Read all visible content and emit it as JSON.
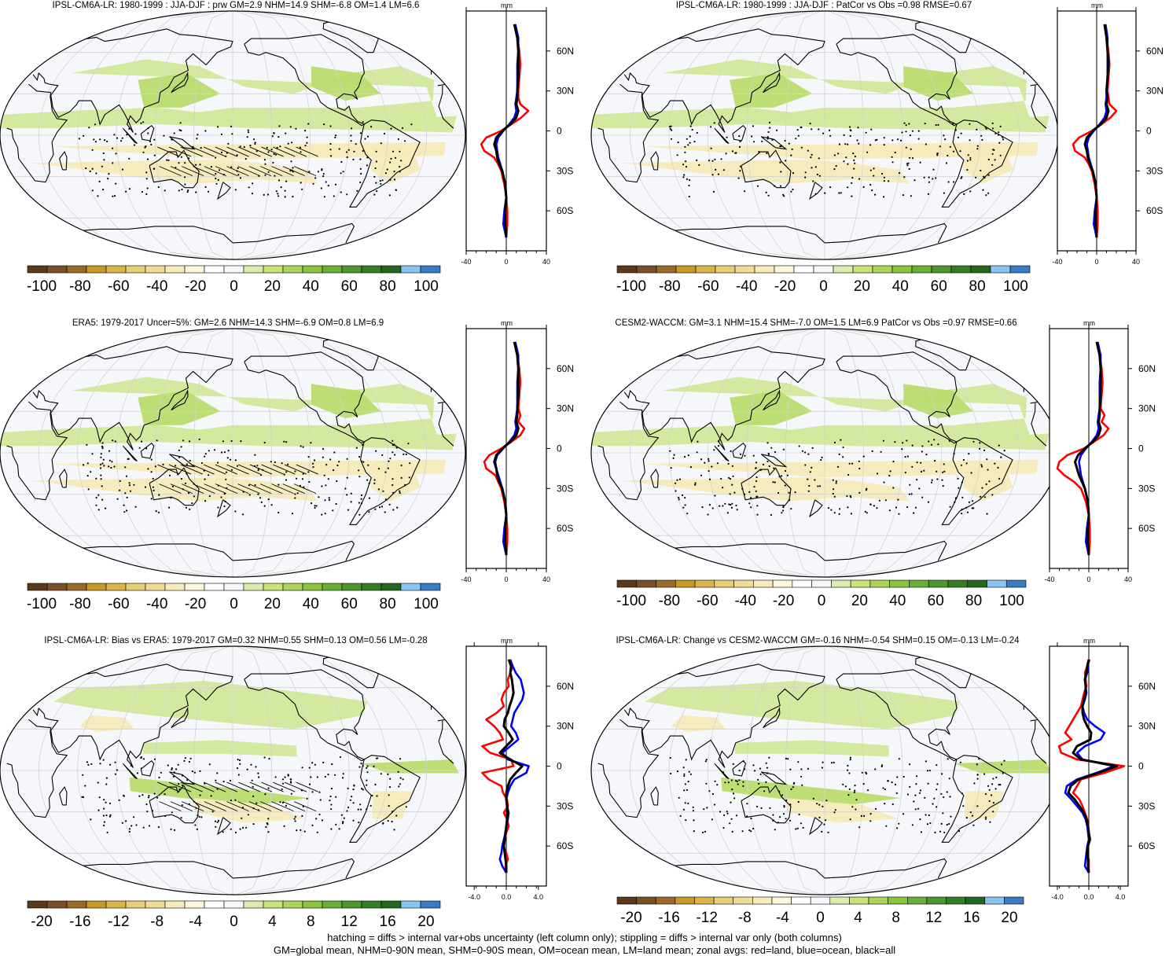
{
  "chart_data": [
    {
      "type": "map",
      "id": "p1",
      "title": "IPSL-CM6A-LR: 1980-1999 : JJA-DJF : prw GM=2.9 NHM=14.9 SHM=-6.8 OM=1.4 LM=6.6",
      "colorbar": {
        "ticks": [
          "-100",
          "-80",
          "-60",
          "-40",
          "-20",
          "0",
          "20",
          "40",
          "60",
          "80",
          "100"
        ]
      },
      "zonal": {
        "unit": "mm",
        "xticks": [
          "-40",
          "0",
          "40"
        ],
        "xrange": [
          -40,
          40
        ],
        "lat_labels": [
          "60N",
          "30N",
          "0",
          "30S",
          "60S"
        ],
        "lat": [
          80,
          70,
          60,
          50,
          40,
          30,
          25,
          20,
          15,
          10,
          5,
          0,
          -5,
          -10,
          -15,
          -20,
          -25,
          -30,
          -40,
          -50,
          -60,
          -70,
          -80
        ],
        "series": [
          {
            "name": "land",
            "color": "#ff0000",
            "values": [
              8,
              11,
              13,
              14,
              13,
              12,
              12,
              14,
              22,
              15,
              5,
              -5,
              -20,
              -25,
              -22,
              -12,
              -8,
              -5,
              -2,
              0,
              1,
              1,
              0
            ]
          },
          {
            "name": "ocean",
            "color": "#0000ff",
            "values": [
              9,
              12,
              12,
              11,
              11,
              11,
              10,
              9,
              10,
              8,
              3,
              -3,
              -8,
              -10,
              -9,
              -8,
              -6,
              -4,
              -1,
              0,
              -2,
              -3,
              0
            ]
          },
          {
            "name": "all",
            "color": "#000000",
            "values": [
              8,
              11,
              12,
              12,
              12,
              11,
              11,
              10,
              12,
              10,
              4,
              -4,
              -10,
              -12,
              -10,
              -9,
              -7,
              -4,
              -1,
              0,
              -1,
              -1,
              0
            ]
          }
        ]
      }
    },
    {
      "type": "map",
      "id": "p2",
      "title": "IPSL-CM6A-LR: 1980-1999 : JJA-DJF : PatCor vs Obs =0.98 RMSE=0.67",
      "colorbar": {
        "ticks": [
          "-100",
          "-80",
          "-60",
          "-40",
          "-20",
          "0",
          "20",
          "40",
          "60",
          "80",
          "100"
        ]
      },
      "zonal": {
        "unit": "mm",
        "xticks": [
          "-40",
          "0",
          "40"
        ],
        "xrange": [
          -40,
          40
        ],
        "lat_labels": [
          "60N",
          "30N",
          "0",
          "30S",
          "60S"
        ],
        "lat": [
          80,
          70,
          60,
          50,
          40,
          30,
          25,
          20,
          15,
          10,
          5,
          0,
          -5,
          -10,
          -15,
          -20,
          -25,
          -30,
          -40,
          -50,
          -60,
          -70,
          -80
        ],
        "series": [
          {
            "name": "land",
            "color": "#ff0000",
            "values": [
              8,
              10,
              12,
              13,
              12,
              11,
              12,
              13,
              20,
              14,
              5,
              -5,
              -18,
              -24,
              -22,
              -12,
              -8,
              -5,
              -2,
              0,
              1,
              1,
              0
            ]
          },
          {
            "name": "ocean",
            "color": "#0000ff",
            "values": [
              9,
              11,
              11,
              11,
              11,
              10,
              10,
              9,
              10,
              8,
              3,
              -3,
              -8,
              -10,
              -9,
              -8,
              -6,
              -4,
              -1,
              0,
              -2,
              -3,
              0
            ]
          },
          {
            "name": "all",
            "color": "#000000",
            "values": [
              8,
              10,
              11,
              12,
              11,
              10,
              11,
              10,
              12,
              10,
              4,
              -4,
              -10,
              -12,
              -10,
              -9,
              -7,
              -4,
              -1,
              0,
              -1,
              -1,
              0
            ]
          }
        ]
      }
    },
    {
      "type": "map",
      "id": "p3",
      "title": "ERA5: 1979-2017 Uncer=5%: GM=2.6 NHM=14.3 SHM=-6.9 OM=0.8 LM=6.9",
      "colorbar": {
        "ticks": [
          "-100",
          "-80",
          "-60",
          "-40",
          "-20",
          "0",
          "20",
          "40",
          "60",
          "80",
          "100"
        ]
      },
      "zonal": {
        "unit": "mm",
        "xticks": [
          "-40",
          "0",
          "40"
        ],
        "xrange": [
          -40,
          40
        ],
        "lat_labels": [
          "60N",
          "30N",
          "0",
          "30S",
          "60S"
        ],
        "lat": [
          80,
          70,
          60,
          50,
          40,
          30,
          25,
          20,
          15,
          10,
          5,
          0,
          -5,
          -10,
          -15,
          -20,
          -25,
          -30,
          -40,
          -50,
          -60,
          -70,
          -80
        ],
        "series": [
          {
            "name": "land",
            "color": "#ff0000",
            "values": [
              8,
              11,
              13,
              14,
              13,
              12,
              14,
              12,
              18,
              14,
              5,
              -5,
              -17,
              -22,
              -20,
              -11,
              -8,
              -5,
              -2,
              0,
              1,
              1,
              0
            ]
          },
          {
            "name": "ocean",
            "color": "#0000ff",
            "values": [
              9,
              12,
              12,
              11,
              11,
              11,
              10,
              9,
              10,
              8,
              3,
              -3,
              -9,
              -11,
              -10,
              -8,
              -6,
              -4,
              -1,
              0,
              -2,
              -3,
              0
            ]
          },
          {
            "name": "all",
            "color": "#000000",
            "values": [
              8,
              11,
              12,
              12,
              12,
              11,
              11,
              10,
              12,
              10,
              4,
              -4,
              -10,
              -12,
              -10,
              -9,
              -7,
              -4,
              -1,
              0,
              -1,
              -1,
              0
            ]
          }
        ]
      }
    },
    {
      "type": "map",
      "id": "p4",
      "title": "CESM2-WACCM: GM=3.1 NHM=15.4 SHM=-7.0 OM=1.5 LM=6.9 PatCor vs Obs =0.97 RMSE=0.66",
      "colorbar": {
        "ticks": [
          "-100",
          "-80",
          "-60",
          "-40",
          "-20",
          "0",
          "20",
          "40",
          "60",
          "80",
          "100"
        ]
      },
      "zonal": {
        "unit": "mm",
        "xticks": [
          "-40",
          "0",
          "40"
        ],
        "xrange": [
          -40,
          40
        ],
        "lat_labels": [
          "60N",
          "30N",
          "0",
          "30S",
          "60S"
        ],
        "lat": [
          80,
          70,
          60,
          50,
          40,
          30,
          25,
          20,
          15,
          10,
          5,
          0,
          -5,
          -10,
          -15,
          -20,
          -25,
          -30,
          -40,
          -50,
          -60,
          -70,
          -80
        ],
        "series": [
          {
            "name": "land",
            "color": "#ff0000",
            "values": [
              8,
              11,
              13,
              14,
              13,
              12,
              16,
              13,
              20,
              15,
              5,
              -5,
              -22,
              -30,
              -32,
              -25,
              -15,
              -8,
              -3,
              0,
              1,
              1,
              0
            ]
          },
          {
            "name": "ocean",
            "color": "#0000ff",
            "values": [
              9,
              12,
              12,
              11,
              11,
              11,
              10,
              9,
              10,
              8,
              3,
              -3,
              -8,
              -10,
              -9,
              -8,
              -6,
              -4,
              -1,
              0,
              -2,
              -3,
              0
            ]
          },
          {
            "name": "all",
            "color": "#000000",
            "values": [
              8,
              11,
              12,
              12,
              12,
              11,
              11,
              10,
              12,
              10,
              4,
              -4,
              -11,
              -14,
              -12,
              -10,
              -7,
              -4,
              -1,
              0,
              -1,
              -1,
              0
            ]
          }
        ]
      }
    },
    {
      "type": "map",
      "id": "p5",
      "title": "IPSL-CM6A-LR: Bias vs ERA5: 1979-2017 GM=0.32 NHM=0.55 SHM=0.13 OM=0.56 LM=-0.28",
      "colorbar": {
        "ticks": [
          "-20",
          "-16",
          "-12",
          "-8",
          "-4",
          "0",
          "4",
          "8",
          "12",
          "16",
          "20"
        ]
      },
      "zonal": {
        "unit": "mm",
        "xticks": [
          "-4.0",
          "0.0",
          "4.0"
        ],
        "xrange": [
          -5,
          5
        ],
        "lat_labels": [
          "60N",
          "30N",
          "0",
          "30S",
          "60S"
        ],
        "lat": [
          80,
          75,
          70,
          65,
          60,
          55,
          50,
          45,
          40,
          35,
          30,
          25,
          20,
          15,
          10,
          5,
          0,
          -5,
          -10,
          -15,
          -20,
          -25,
          -30,
          -35,
          -40,
          -45,
          -50,
          -55,
          -60,
          -65,
          -70,
          -75,
          -80
        ],
        "series": [
          {
            "name": "land",
            "color": "#ff0000",
            "values": [
              0.3,
              0.8,
              0.5,
              0.2,
              0.3,
              -0.3,
              -0.6,
              -0.3,
              -1.2,
              -2.5,
              -1.5,
              -0.8,
              -0.4,
              -3.0,
              -2.0,
              0.6,
              0.9,
              -3.0,
              -2.2,
              -0.6,
              -0.4,
              0.1,
              0.2,
              -0.3,
              0.1,
              0.3,
              0.0,
              -0.2,
              -0.4,
              0.0,
              0.2,
              -0.1,
              0.0
            ]
          },
          {
            "name": "ocean",
            "color": "#0000ff",
            "values": [
              0.5,
              0.8,
              1.2,
              1.8,
              2.0,
              2.2,
              2.0,
              1.5,
              1.0,
              0.8,
              0.6,
              1.2,
              1.5,
              0.5,
              -0.5,
              0.2,
              2.8,
              2.5,
              1.0,
              0.5,
              0.2,
              0.0,
              0.1,
              0.3,
              0.2,
              0.0,
              -0.1,
              -0.3,
              -0.5,
              -0.6,
              -0.8,
              -0.5,
              0.0
            ]
          },
          {
            "name": "all",
            "color": "#000000",
            "values": [
              0.3,
              0.6,
              0.5,
              0.7,
              0.8,
              0.9,
              0.7,
              0.4,
              0.2,
              -0.2,
              -0.3,
              0.3,
              0.8,
              0.0,
              -0.8,
              0.5,
              2.0,
              1.2,
              0.5,
              0.2,
              0.0,
              0.0,
              0.1,
              0.2,
              0.1,
              0.0,
              -0.1,
              -0.2,
              -0.3,
              -0.2,
              -0.1,
              0.0,
              0.0
            ]
          }
        ]
      }
    },
    {
      "type": "map",
      "id": "p6",
      "title": "IPSL-CM6A-LR: Change vs CESM2-WACCM GM=-0.16 NHM=-0.54 SHM=0.15 OM=-0.13 LM=-0.24",
      "colorbar": {
        "ticks": [
          "-20",
          "-16",
          "-12",
          "-8",
          "-4",
          "0",
          "4",
          "8",
          "12",
          "16",
          "20"
        ]
      },
      "zonal": {
        "unit": "mm",
        "xticks": [
          "-4.0",
          "0.0",
          "4.0"
        ],
        "xrange": [
          -5,
          5
        ],
        "lat_labels": [
          "60N",
          "30N",
          "0",
          "30S",
          "60S"
        ],
        "lat": [
          80,
          75,
          70,
          65,
          60,
          55,
          50,
          45,
          40,
          35,
          30,
          25,
          20,
          15,
          10,
          5,
          0,
          -5,
          -10,
          -15,
          -20,
          -25,
          -30,
          -35,
          -40,
          -45,
          -50,
          -55,
          -60,
          -65,
          -70,
          -75,
          -80
        ],
        "series": [
          {
            "name": "land",
            "color": "#ff0000",
            "values": [
              0.1,
              -0.2,
              -0.5,
              -0.4,
              -0.3,
              -0.6,
              -0.8,
              -1.0,
              -1.5,
              -2.0,
              -2.5,
              -3.0,
              -2.2,
              -3.8,
              -3.5,
              -1.5,
              4.5,
              2.0,
              -1.0,
              -1.5,
              -2.0,
              -1.2,
              -0.8,
              -0.5,
              -0.2,
              -0.1,
              0.0,
              0.2,
              -0.1,
              -0.3,
              0.0,
              0.0,
              0.0
            ]
          },
          {
            "name": "ocean",
            "color": "#0000ff",
            "values": [
              0.0,
              -0.1,
              -0.2,
              -0.5,
              -0.4,
              -0.3,
              -0.5,
              -0.8,
              -0.6,
              -0.2,
              0.8,
              2.0,
              1.5,
              -0.5,
              -1.5,
              -0.8,
              3.2,
              1.0,
              -1.5,
              -2.8,
              -3.0,
              -2.2,
              -1.5,
              -0.8,
              -0.4,
              -0.2,
              -0.1,
              0.0,
              -0.2,
              -0.3,
              -0.4,
              -0.5,
              0.0
            ]
          },
          {
            "name": "all",
            "color": "#000000",
            "values": [
              0.0,
              -0.2,
              -0.3,
              -0.5,
              -0.4,
              -0.4,
              -0.6,
              -0.8,
              -0.8,
              -0.6,
              -0.2,
              0.3,
              0.2,
              -1.5,
              -2.0,
              -1.0,
              3.6,
              1.2,
              -1.3,
              -2.3,
              -2.6,
              -1.8,
              -1.2,
              -0.6,
              -0.3,
              -0.1,
              0.0,
              0.1,
              -0.1,
              -0.2,
              -0.1,
              -0.1,
              0.0
            ]
          }
        ]
      }
    }
  ],
  "palette": [
    "#5a3a1a",
    "#7a5028",
    "#996a2a",
    "#c49a28",
    "#d9b44a",
    "#e8ce78",
    "#f0dc98",
    "#f7eabb",
    "#fbf5dc",
    "#ffffff",
    "#f7f8fc",
    "#dcecb0",
    "#c8e27c",
    "#acd45c",
    "#8cc440",
    "#6aae38",
    "#4c962e",
    "#347c26",
    "#24661e",
    "#8cc4f0",
    "#3a7cc4"
  ],
  "colors": {
    "ocean_bg": "#f6f7fb",
    "land_line": "#000000",
    "grid": "#d2d2d2",
    "green_light": "#d2e89a",
    "green_mid": "#b9dc6e",
    "green_dark": "#8cc24e",
    "tan_light": "#f4eab8",
    "tan_mid": "#e9d888"
  },
  "footer": {
    "line1": "hatching = diffs > internal var+obs uncertainty (left column only); stippling = diffs > internal var only (both columns)",
    "line2": "GM=global mean, NHM=0-90N mean, SHM=0-90S mean, OM=ocean mean, LM=land mean; zonal avgs: red=land, blue=ocean, black=all"
  }
}
